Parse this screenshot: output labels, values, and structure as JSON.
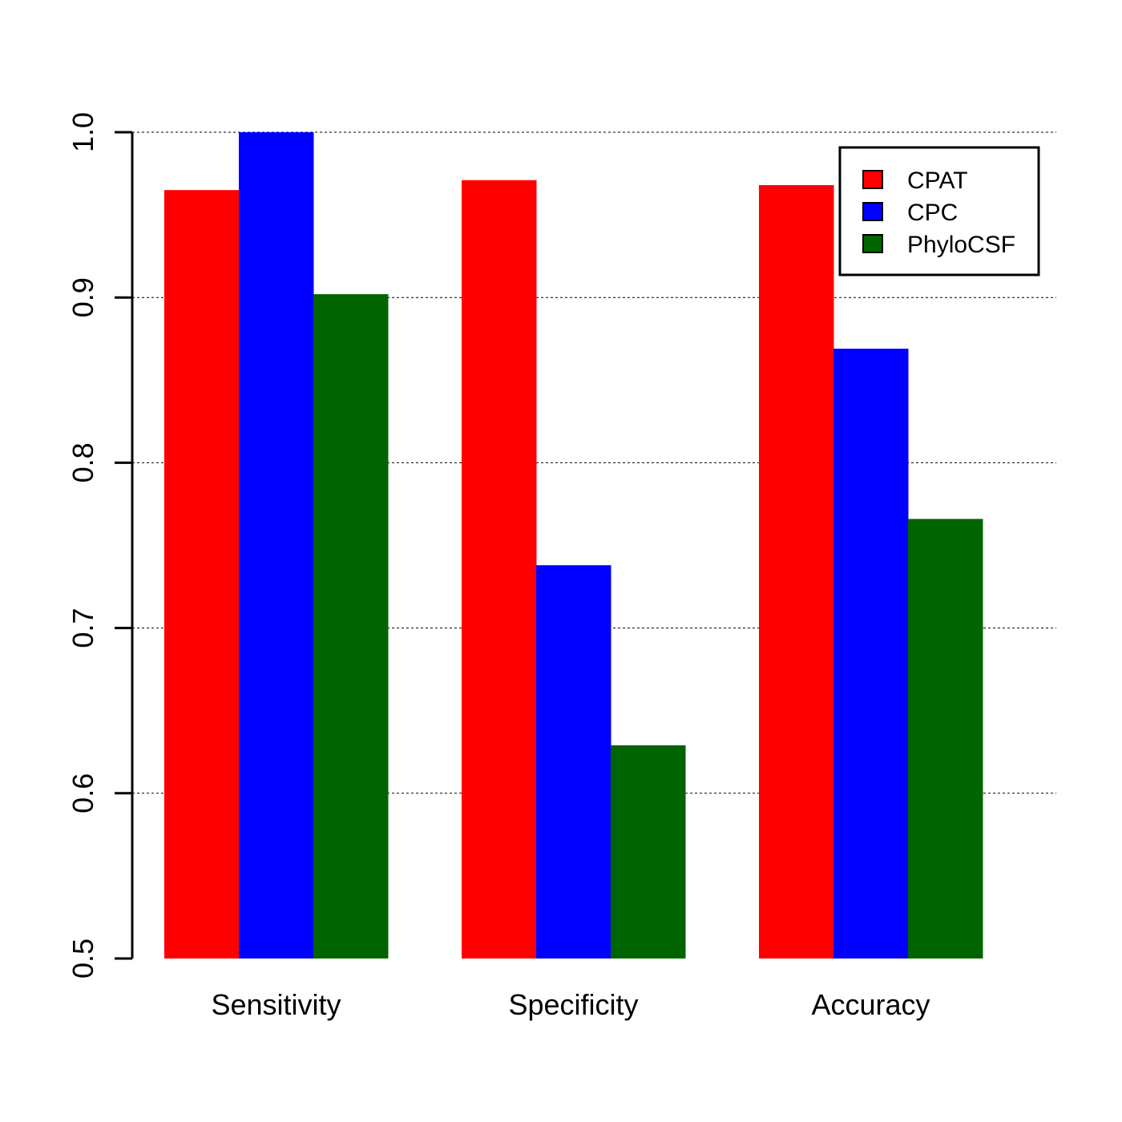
{
  "chart_data": {
    "type": "bar",
    "categories": [
      "Sensitivity",
      "Specificity",
      "Accuracy"
    ],
    "series": [
      {
        "name": "CPAT",
        "color": "#ff0000",
        "values": [
          0.965,
          0.971,
          0.968
        ]
      },
      {
        "name": "CPC",
        "color": "#0000ff",
        "values": [
          1.0,
          0.738,
          0.869
        ]
      },
      {
        "name": "PhyloCSF",
        "color": "#006400",
        "values": [
          0.902,
          0.629,
          0.766
        ]
      }
    ],
    "title": "",
    "xlabel": "",
    "ylabel": "",
    "ylim": [
      0.5,
      1.0
    ],
    "yticks": [
      0.5,
      0.6,
      0.7,
      0.8,
      0.9,
      1.0
    ],
    "ytick_labels": [
      "0.5",
      "0.6",
      "0.7",
      "0.8",
      "0.9",
      "1.0"
    ],
    "grid": "horizontal-dotted",
    "legend_position": "top-right"
  }
}
